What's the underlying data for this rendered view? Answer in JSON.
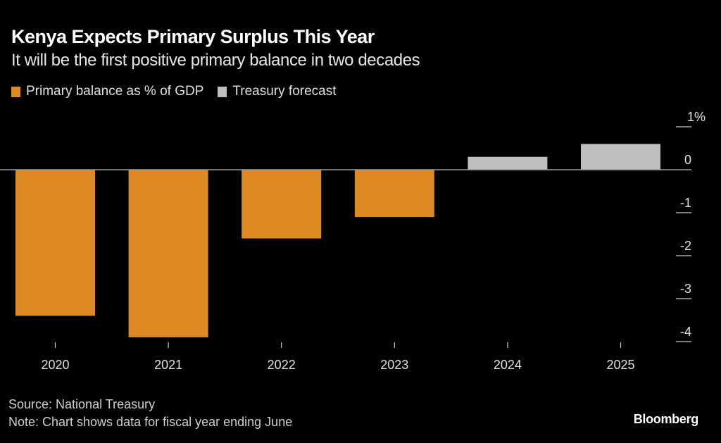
{
  "header": {
    "title": "Kenya Expects Primary Surplus This Year",
    "subtitle": "It will be the first positive primary balance in two decades"
  },
  "legend": [
    {
      "label": "Primary balance as % of GDP",
      "color": "#dd8a24"
    },
    {
      "label": "Treasury forecast",
      "color": "#bfbfbf"
    }
  ],
  "footer": {
    "source": "Source: National Treasury",
    "note": "Note: Chart shows data for fiscal year ending June",
    "brand": "Bloomberg"
  },
  "chart_data": {
    "type": "bar",
    "title": "Kenya Expects Primary Surplus This Year",
    "subtitle": "It will be the first positive primary balance in two decades",
    "xlabel": "",
    "ylabel": "",
    "categories": [
      "2020",
      "2021",
      "2022",
      "2023",
      "2024",
      "2025"
    ],
    "series": [
      {
        "name": "Primary balance as % of GDP",
        "color": "#dd8a24",
        "values": [
          -3.4,
          -3.9,
          -1.6,
          -1.1,
          null,
          null
        ]
      },
      {
        "name": "Treasury forecast",
        "color": "#bfbfbf",
        "values": [
          null,
          null,
          null,
          null,
          0.3,
          0.6
        ]
      }
    ],
    "ylim": [
      -4,
      1
    ],
    "yticks": [
      1,
      0,
      -1,
      -2,
      -3,
      -4
    ],
    "ytick_labels": [
      "1%",
      "0",
      "-1",
      "-2",
      "-3",
      "-4"
    ],
    "y_axis_side": "right",
    "grid": false,
    "legend_position": "top-left",
    "zero_line_color": "#9a9a9a",
    "tick_color": "#cccccc"
  }
}
